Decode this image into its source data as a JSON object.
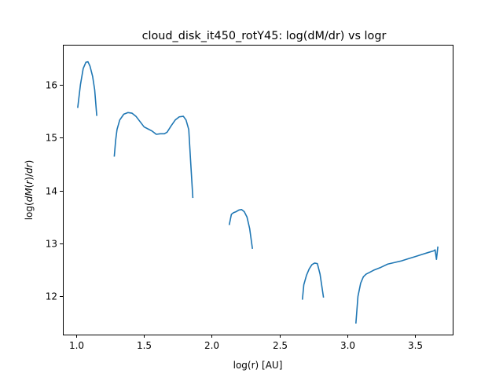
{
  "chart_data": {
    "type": "line",
    "title": "cloud_disk_it450_rotY45: log(dM/dr) vs logr",
    "xlabel": "log(r) [AU]",
    "ylabel_parts": [
      "log(",
      "dM",
      "(",
      "r",
      ")/",
      "dr",
      ")"
    ],
    "xlim": [
      0.9,
      3.78
    ],
    "ylim": [
      11.28,
      16.75
    ],
    "x_ticks": [
      1.0,
      1.5,
      2.0,
      2.5,
      3.0,
      3.5
    ],
    "x_tick_labels": [
      "1.0",
      "1.5",
      "2.0",
      "2.5",
      "3.0",
      "3.5"
    ],
    "y_ticks": [
      12,
      13,
      14,
      15,
      16
    ],
    "y_tick_labels": [
      "12",
      "13",
      "14",
      "15",
      "16"
    ],
    "grid": false,
    "series": [
      {
        "color": "#1f77b4",
        "segments": [
          [
            [
              1.01,
              15.57
            ],
            [
              1.03,
              16.0
            ],
            [
              1.05,
              16.3
            ],
            [
              1.07,
              16.42
            ],
            [
              1.085,
              16.43
            ],
            [
              1.1,
              16.35
            ],
            [
              1.12,
              16.15
            ],
            [
              1.135,
              15.9
            ],
            [
              1.15,
              15.42
            ]
          ],
          [
            [
              1.28,
              14.65
            ],
            [
              1.29,
              14.95
            ],
            [
              1.3,
              15.15
            ],
            [
              1.32,
              15.33
            ],
            [
              1.35,
              15.44
            ],
            [
              1.38,
              15.47
            ],
            [
              1.41,
              15.46
            ],
            [
              1.44,
              15.4
            ],
            [
              1.47,
              15.3
            ],
            [
              1.5,
              15.2
            ],
            [
              1.53,
              15.16
            ],
            [
              1.56,
              15.12
            ],
            [
              1.59,
              15.06
            ],
            [
              1.62,
              15.07
            ],
            [
              1.65,
              15.07
            ],
            [
              1.67,
              15.1
            ],
            [
              1.7,
              15.22
            ],
            [
              1.73,
              15.33
            ],
            [
              1.76,
              15.39
            ],
            [
              1.79,
              15.4
            ],
            [
              1.81,
              15.33
            ],
            [
              1.83,
              15.15
            ],
            [
              1.845,
              14.5
            ],
            [
              1.86,
              13.87
            ]
          ],
          [
            [
              2.13,
              13.36
            ],
            [
              2.145,
              13.55
            ],
            [
              2.16,
              13.58
            ],
            [
              2.18,
              13.6
            ],
            [
              2.2,
              13.63
            ],
            [
              2.22,
              13.64
            ],
            [
              2.24,
              13.6
            ],
            [
              2.26,
              13.5
            ],
            [
              2.28,
              13.28
            ],
            [
              2.3,
              12.91
            ]
          ],
          [
            [
              2.67,
              11.95
            ],
            [
              2.68,
              12.22
            ],
            [
              2.7,
              12.4
            ],
            [
              2.72,
              12.52
            ],
            [
              2.74,
              12.6
            ],
            [
              2.76,
              12.63
            ],
            [
              2.78,
              12.62
            ],
            [
              2.8,
              12.42
            ],
            [
              2.825,
              11.99
            ]
          ],
          [
            [
              3.065,
              11.5
            ],
            [
              3.08,
              12.0
            ],
            [
              3.1,
              12.25
            ],
            [
              3.12,
              12.37
            ],
            [
              3.14,
              12.42
            ],
            [
              3.17,
              12.46
            ],
            [
              3.2,
              12.5
            ],
            [
              3.25,
              12.55
            ],
            [
              3.3,
              12.61
            ],
            [
              3.35,
              12.64
            ],
            [
              3.4,
              12.67
            ],
            [
              3.45,
              12.71
            ],
            [
              3.5,
              12.75
            ],
            [
              3.55,
              12.79
            ],
            [
              3.6,
              12.83
            ],
            [
              3.64,
              12.86
            ],
            [
              3.65,
              12.88
            ],
            [
              3.66,
              12.7
            ],
            [
              3.67,
              12.93
            ]
          ]
        ]
      }
    ]
  }
}
